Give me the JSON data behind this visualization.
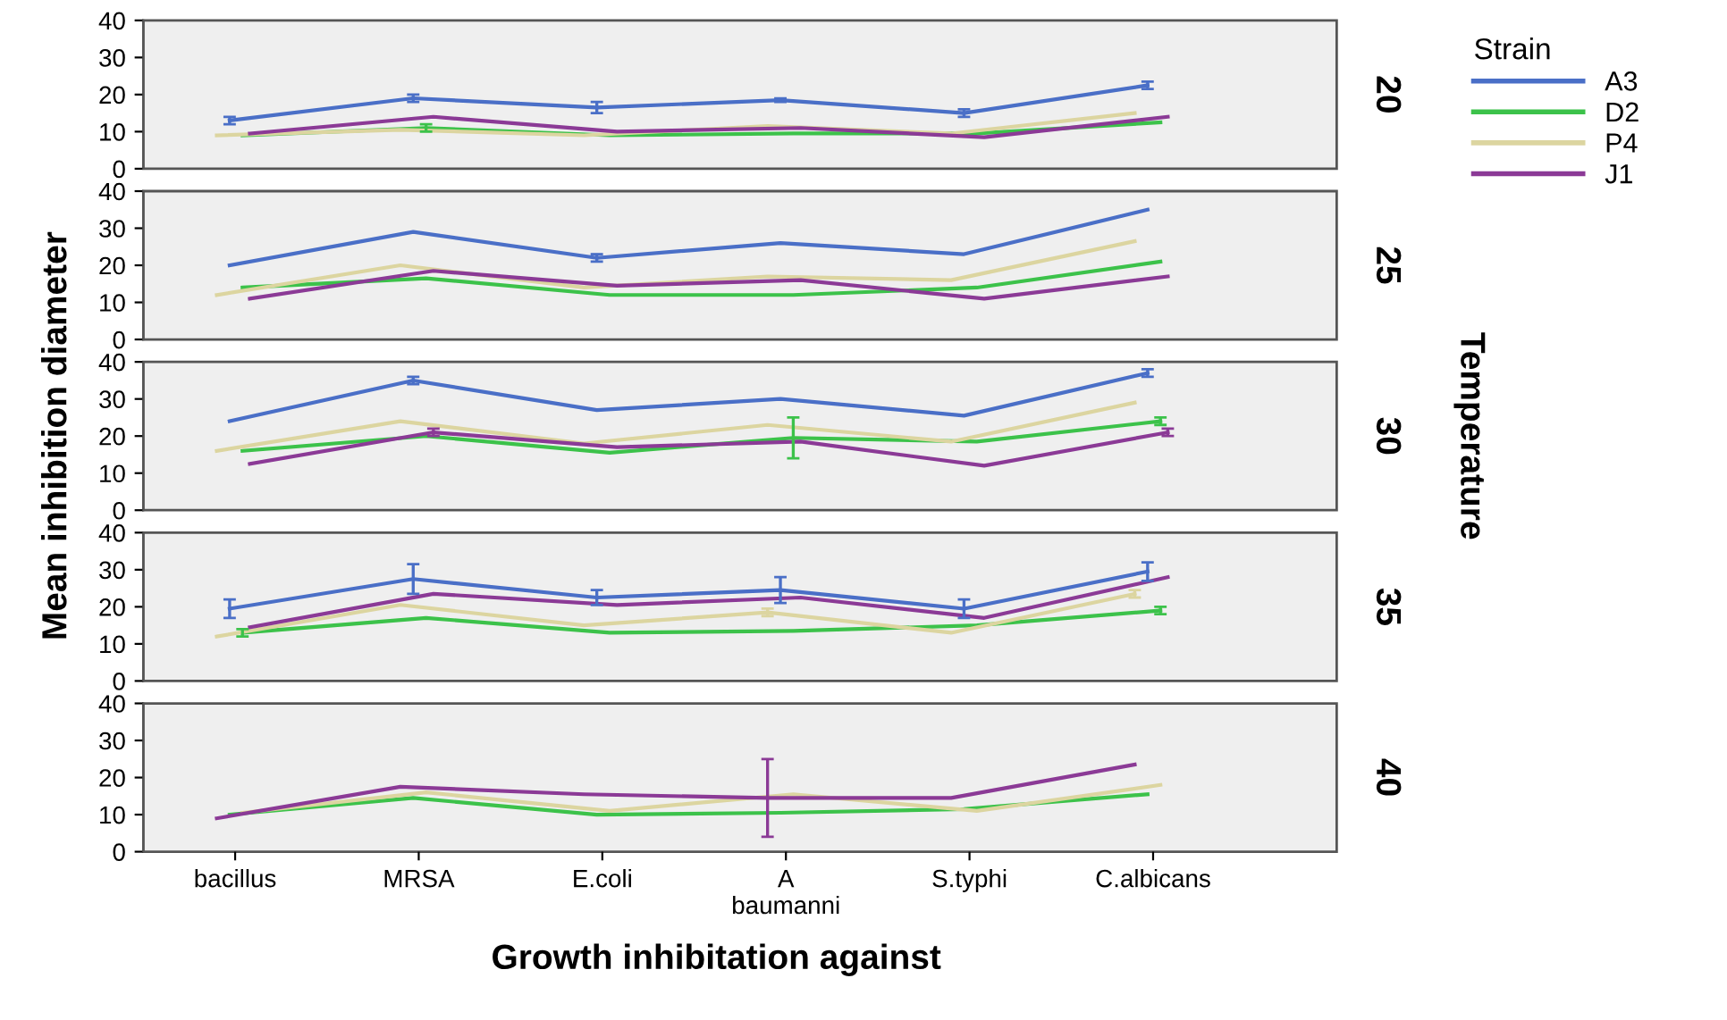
{
  "chart_data": [
    {
      "type": "line",
      "annotations": [
        "20"
      ],
      "legend_title": "Strain",
      "legend": "right",
      "tick_labels": "y",
      "categories": [
        null,
        null,
        null,
        null,
        null,
        null
      ],
      "ylim": [
        0,
        40
      ],
      "yticks": [
        0,
        10,
        20,
        30,
        40
      ],
      "series": [
        {
          "name": "A3",
          "color": "#4a6fc7",
          "values": [
            13,
            19,
            16.5,
            18.5,
            15,
            22.5
          ],
          "errors": [
            1,
            1,
            1.5,
            0.5,
            1,
            1
          ]
        },
        {
          "name": "D2",
          "color": "#3cc24a",
          "values": [
            9,
            11,
            9,
            9.5,
            9.5,
            12.5
          ],
          "errors": [
            null,
            1,
            null,
            null,
            null,
            null
          ]
        },
        {
          "name": "P4",
          "color": "#dcd5a0",
          "values": [
            9,
            10.5,
            9,
            11.5,
            9.5,
            15
          ]
        },
        {
          "name": "J1",
          "color": "#8b3a96",
          "values": [
            9.5,
            14,
            10,
            11,
            8.5,
            14
          ]
        }
      ]
    },
    {
      "type": "line",
      "annotations": [
        "25"
      ],
      "tick_labels": "y",
      "categories": [
        null,
        null,
        null,
        null,
        null,
        null
      ],
      "ylim": [
        0,
        40
      ],
      "yticks": [
        0,
        10,
        20,
        30,
        40
      ],
      "series": [
        {
          "color": "#4a6fc7",
          "values": [
            20,
            29,
            22,
            26,
            23,
            35
          ],
          "errors": [
            null,
            null,
            1,
            null,
            null,
            null
          ]
        },
        {
          "color": "#3cc24a",
          "values": [
            14,
            16.5,
            12,
            12,
            14,
            21
          ]
        },
        {
          "color": "#dcd5a0",
          "values": [
            12,
            20,
            14,
            17,
            16,
            26.5
          ]
        },
        {
          "color": "#8b3a96",
          "values": [
            11,
            18.5,
            14.5,
            16,
            11,
            17
          ]
        }
      ]
    },
    {
      "type": "line",
      "annotations": [
        "30"
      ],
      "ylabel": "Mean inhibition diameter",
      "y2label": "Temperature",
      "tick_labels": "y",
      "categories": [
        null,
        null,
        null,
        null,
        null,
        null
      ],
      "ylim": [
        0,
        40
      ],
      "yticks": [
        0,
        10,
        20,
        30,
        40
      ],
      "series": [
        {
          "color": "#4a6fc7",
          "values": [
            24,
            35,
            27,
            30,
            25.5,
            37
          ],
          "errors": [
            null,
            1,
            null,
            null,
            null,
            1
          ]
        },
        {
          "color": "#3cc24a",
          "values": [
            16,
            20,
            15.5,
            19.5,
            18.5,
            24
          ],
          "errors": [
            null,
            null,
            null,
            5.5,
            null,
            1
          ]
        },
        {
          "color": "#dcd5a0",
          "values": [
            16,
            24,
            18,
            23,
            18.5,
            29
          ]
        },
        {
          "color": "#8b3a96",
          "values": [
            12.5,
            21,
            17,
            18.5,
            12,
            21
          ],
          "errors": [
            null,
            1,
            null,
            null,
            null,
            1
          ]
        }
      ]
    },
    {
      "type": "line",
      "annotations": [
        "35"
      ],
      "tick_labels": "y",
      "categories": [
        null,
        null,
        null,
        null,
        null,
        null
      ],
      "ylim": [
        0,
        40
      ],
      "yticks": [
        0,
        10,
        20,
        30,
        40
      ],
      "series": [
        {
          "color": "#4a6fc7",
          "values": [
            19.5,
            27.5,
            22.5,
            24.5,
            19.5,
            29.5
          ],
          "errors": [
            2.5,
            4,
            2,
            3.5,
            2.5,
            2.5
          ]
        },
        {
          "color": "#3cc24a",
          "values": [
            13,
            17,
            13,
            13.5,
            15,
            19
          ],
          "errors": [
            1,
            null,
            null,
            null,
            null,
            1
          ]
        },
        {
          "color": "#dcd5a0",
          "values": [
            12,
            20.5,
            15,
            18.5,
            13,
            23.5
          ],
          "errors": [
            null,
            null,
            null,
            1,
            null,
            1
          ]
        },
        {
          "color": "#8b3a96",
          "values": [
            14.5,
            23.5,
            20.5,
            22.5,
            17,
            28
          ]
        }
      ]
    },
    {
      "type": "line",
      "annotations": [
        "40"
      ],
      "xlabel": "Growth inhibitation against",
      "categories": [
        "bacillus",
        "MRSA",
        "E.coli",
        "A\nbaumanni",
        "S.typhi",
        "C.albicans"
      ],
      "ylim": [
        0,
        40
      ],
      "yticks": [
        0,
        10,
        20,
        30,
        40
      ],
      "series": [
        {
          "color": "#3cc24a",
          "values": [
            10,
            14.5,
            10,
            10.5,
            11.5,
            15.5
          ]
        },
        {
          "color": "#dcd5a0",
          "values": [
            10.5,
            16,
            11,
            15.5,
            11,
            18
          ]
        },
        {
          "color": "#8b3a96",
          "values": [
            9,
            17.5,
            15.5,
            14.5,
            14.5,
            23.5
          ],
          "errors": [
            null,
            null,
            null,
            10.5,
            null,
            null
          ]
        }
      ]
    }
  ]
}
